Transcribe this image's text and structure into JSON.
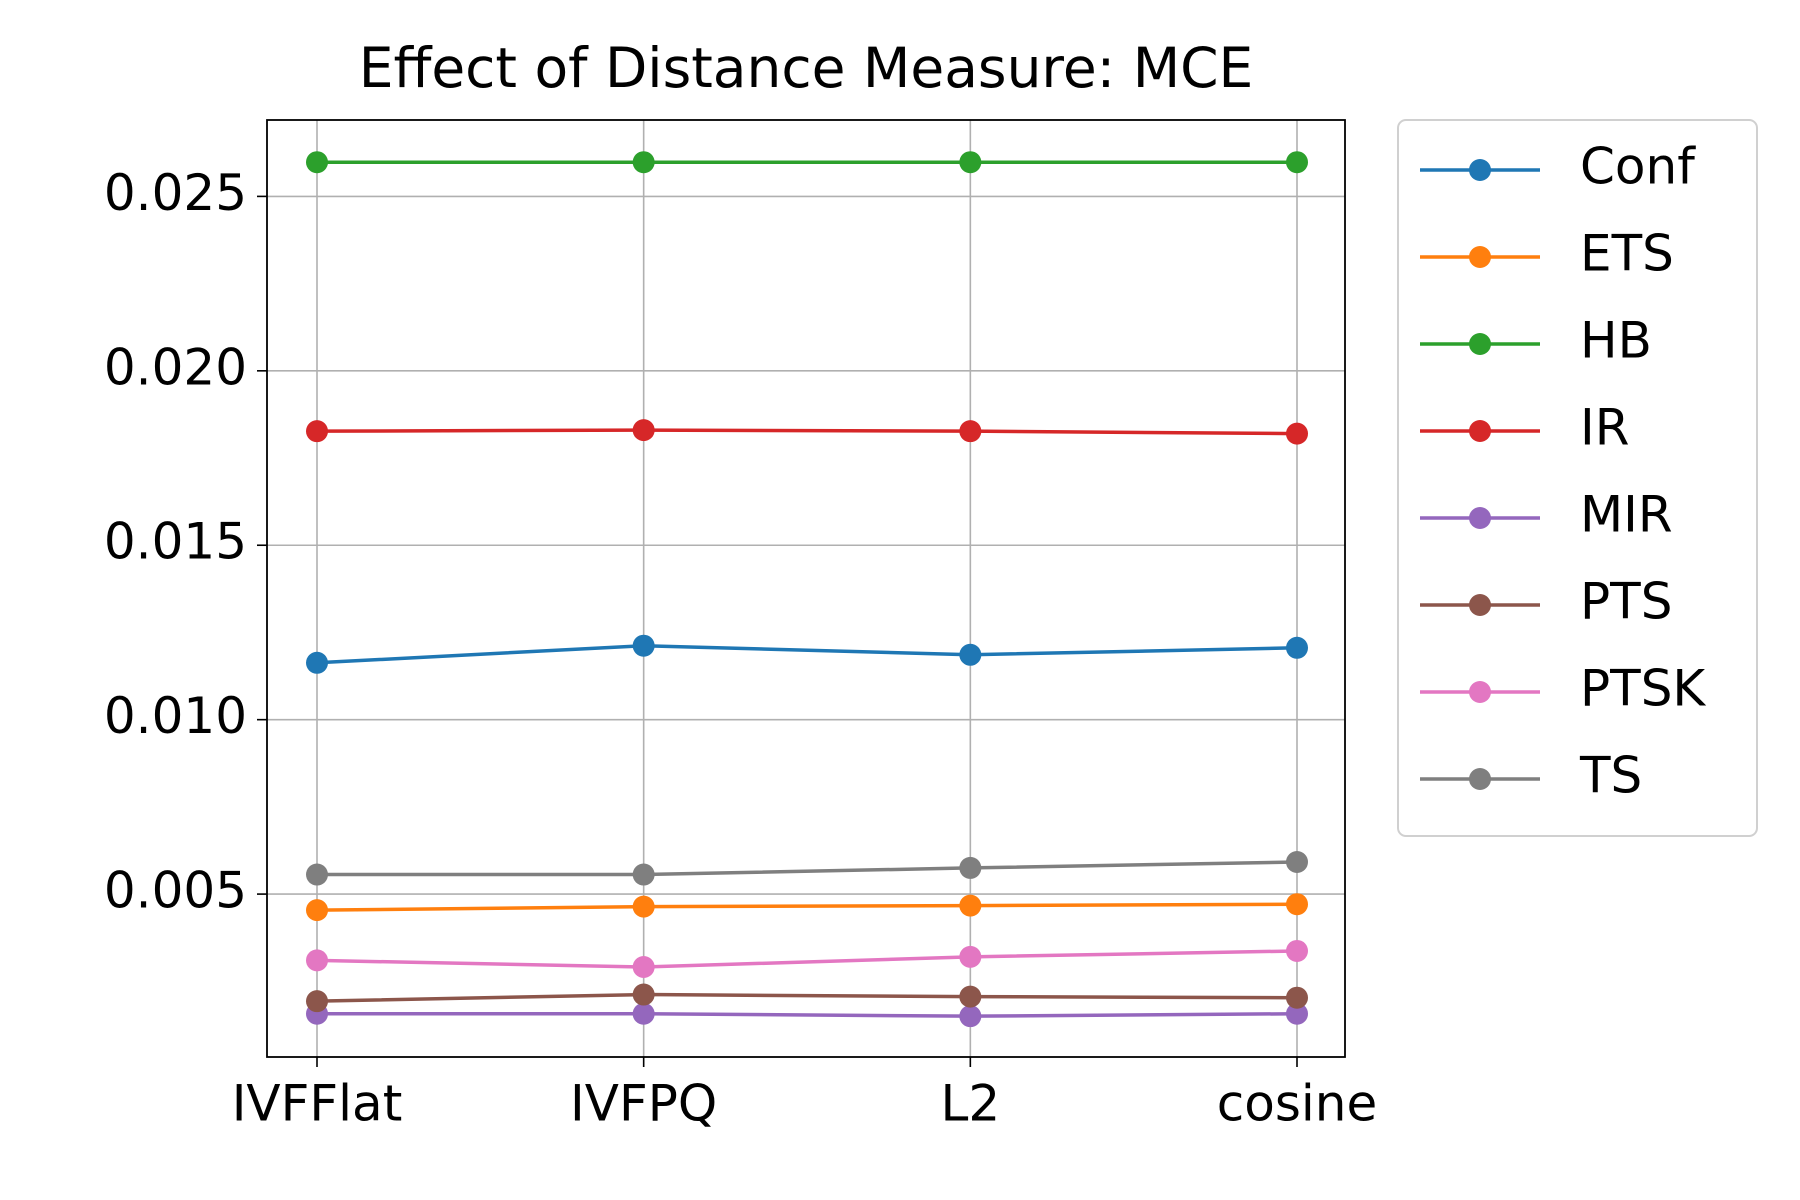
{
  "chart_data": {
    "type": "line",
    "title": "Effect of Distance Measure: MCE",
    "categories": [
      "IVFFlat",
      "IVFPQ",
      "L2",
      "cosine"
    ],
    "ylim": [
      0.00033,
      0.02719
    ],
    "yticks": [
      {
        "value": 0.005,
        "label": "0.005"
      },
      {
        "value": 0.01,
        "label": "0.010"
      },
      {
        "value": 0.015,
        "label": "0.015"
      },
      {
        "value": 0.02,
        "label": "0.020"
      },
      {
        "value": 0.025,
        "label": "0.025"
      }
    ],
    "grid": true,
    "legend": "outside-upper-right",
    "series": [
      {
        "name": "Conf",
        "color": "#1f77b4",
        "values": [
          0.01163,
          0.01212,
          0.01186,
          0.01206
        ]
      },
      {
        "name": "ETS",
        "color": "#ff7f0e",
        "values": [
          0.00454,
          0.00464,
          0.00467,
          0.00471
        ]
      },
      {
        "name": "HB",
        "color": "#2ca02c",
        "values": [
          0.02598,
          0.02598,
          0.02598,
          0.02598
        ]
      },
      {
        "name": "IR",
        "color": "#d62728",
        "values": [
          0.01827,
          0.0183,
          0.01827,
          0.0182
        ]
      },
      {
        "name": "MIR",
        "color": "#9467bd",
        "values": [
          0.00157,
          0.00157,
          0.0015,
          0.00157
        ]
      },
      {
        "name": "PTS",
        "color": "#8c564b",
        "values": [
          0.00193,
          0.00212,
          0.00206,
          0.00203
        ]
      },
      {
        "name": "PTSK",
        "color": "#e377c2",
        "values": [
          0.0031,
          0.00291,
          0.0032,
          0.00337
        ]
      },
      {
        "name": "TS",
        "color": "#7f7f7f",
        "values": [
          0.00556,
          0.00556,
          0.00575,
          0.00592
        ]
      }
    ]
  }
}
